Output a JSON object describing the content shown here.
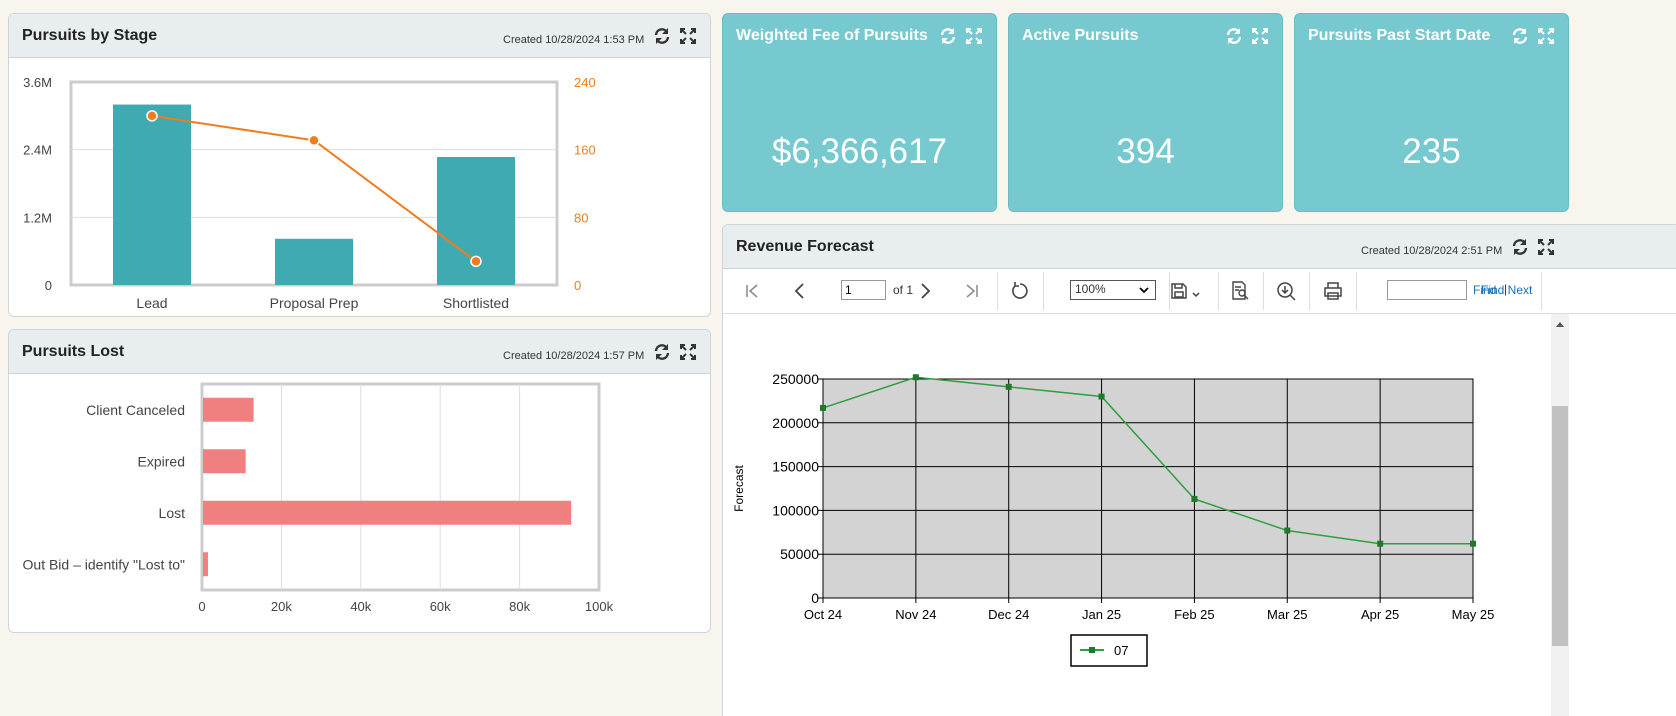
{
  "pursuits_by_stage": {
    "title": "Pursuits by Stage",
    "created": "Created 10/28/2024 1:53 PM",
    "refresh_icon": "refresh-icon",
    "expand_icon": "expand-icon",
    "chart_data": {
      "type": "bar",
      "categories": [
        "Lead",
        "Proposal Prep",
        "Shortlisted"
      ],
      "series": [
        {
          "values": [
            3200000,
            820000,
            2270000
          ],
          "color": "#40aab2",
          "axis": "left"
        },
        {
          "type": "line",
          "values": [
            200,
            171,
            28
          ],
          "color": "#f07d1d",
          "axis": "right"
        }
      ],
      "y_left": {
        "ticks": [
          "0",
          "1.2M",
          "2.4M",
          "3.6M"
        ],
        "lim": [
          0,
          3600000
        ]
      },
      "y_right": {
        "ticks": [
          "0",
          "80",
          "160",
          "240"
        ],
        "lim": [
          0,
          240
        ]
      },
      "grid": true
    }
  },
  "pursuits_lost": {
    "title": "Pursuits Lost",
    "created": "Created 10/28/2024 1:57 PM",
    "chart_data": {
      "type": "bar",
      "orientation": "horizontal",
      "categories": [
        "Client Canceled",
        "Expired",
        "Lost",
        "Out Bid – identify \"Lost to\""
      ],
      "values": [
        13000,
        11000,
        93000,
        1500
      ],
      "color": "#f08080",
      "xlim": [
        0,
        100000
      ],
      "x_ticks": [
        "0",
        "20k",
        "40k",
        "60k",
        "80k",
        "100k"
      ],
      "grid": true
    }
  },
  "kpis": [
    {
      "title": "Weighted Fee of Pursuits",
      "value": "$6,366,617"
    },
    {
      "title": "Active Pursuits",
      "value": "394"
    },
    {
      "title": "Pursuits Past Start Date",
      "value": "235"
    }
  ],
  "revenue_forecast": {
    "title": "Revenue Forecast",
    "created": "Created 10/28/2024 2:51 PM",
    "toolbar": {
      "page_value": "1",
      "of_label": "of 1",
      "zoom": "100%",
      "find_label": "Find",
      "find_next_label": "Find Next",
      "separator": "|"
    },
    "chart_data": {
      "type": "line",
      "x": [
        "Oct 24",
        "Nov 24",
        "Dec 24",
        "Jan 25",
        "Feb 25",
        "Mar 25",
        "Apr 25",
        "May 25"
      ],
      "series": [
        {
          "name": "07",
          "values": [
            217000,
            252000,
            241000,
            230000,
            113000,
            77000,
            62000,
            62000
          ],
          "color": "#2e9e3e"
        }
      ],
      "ylabel": "Forecast",
      "ylim": [
        0,
        250000
      ],
      "y_ticks": [
        "0",
        "50000",
        "100000",
        "150000",
        "200000",
        "250000"
      ],
      "grid": true,
      "legend": "bottom",
      "background": "#d3d3d3"
    }
  }
}
